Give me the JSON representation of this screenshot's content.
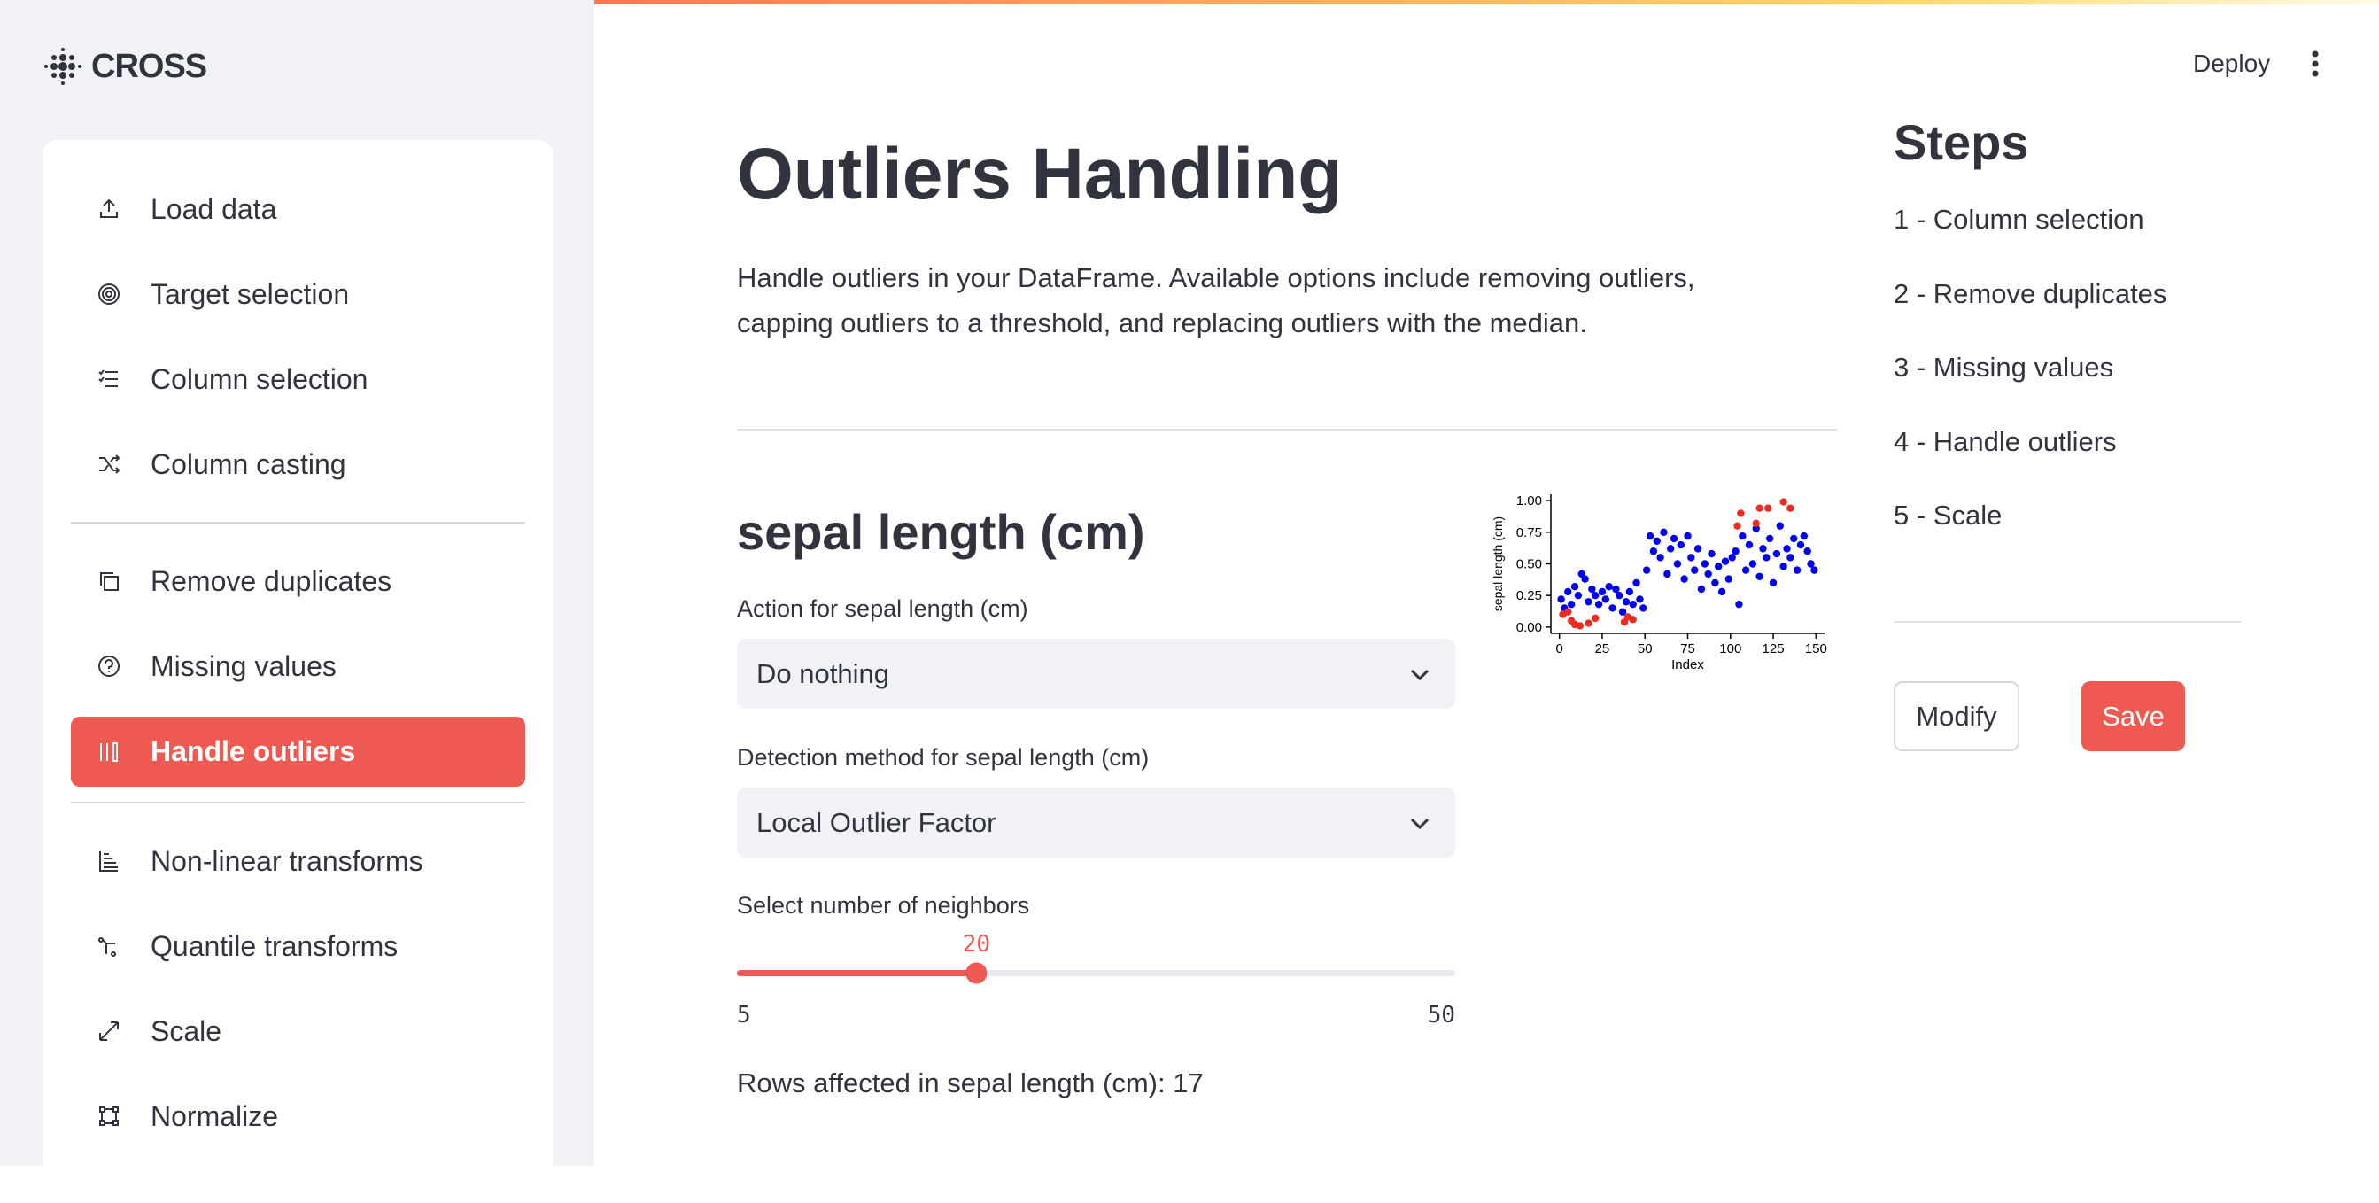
{
  "header": {
    "logo": "CROSS",
    "deploy": "Deploy"
  },
  "sidebar": {
    "nav": [
      "Load data",
      "Target selection",
      "Column selection",
      "Column casting",
      "Remove duplicates",
      "Missing values",
      "Handle outliers",
      "Non-linear transforms",
      "Quantile transforms",
      "Scale",
      "Normalize"
    ],
    "active": 6
  },
  "main": {
    "title": "Outliers Handling",
    "description": "Handle outliers in your DataFrame. Available options include removing outliers, capping outliers to a threshold, and replacing outliers with the median.",
    "section_title": "sepal length (cm)",
    "action_label": "Action for sepal length (cm)",
    "action_value": "Do nothing",
    "detection_label": "Detection method for sepal length (cm)",
    "detection_value": "Local Outlier Factor",
    "neighbors_label": "Select number of neighbors",
    "slider": {
      "value": 20,
      "min": 5,
      "max": 50
    },
    "rows_affected": "Rows affected in sepal length (cm): 17"
  },
  "chart_data": {
    "type": "scatter",
    "xlabel": "Index",
    "ylabel": "sepal length (cm)",
    "xlim": [
      -5,
      155
    ],
    "ylim": [
      -0.05,
      1.05
    ],
    "xticks": [
      0,
      25,
      50,
      75,
      100,
      125,
      150
    ],
    "yticks": [
      {
        "value": 0,
        "label": "0.00"
      },
      {
        "value": 0.25,
        "label": "0.25"
      },
      {
        "value": 0.5,
        "label": "0.50"
      },
      {
        "value": 0.75,
        "label": "0.75"
      },
      {
        "value": 1,
        "label": "1.00"
      }
    ],
    "series": [
      {
        "color": "#0000ee",
        "x": [
          1,
          3,
          5,
          7,
          9,
          11,
          13,
          15,
          17,
          19,
          21,
          23,
          25,
          27,
          29,
          31,
          33,
          35,
          37,
          39,
          41,
          43,
          45,
          47,
          49,
          51,
          53,
          55,
          57,
          59,
          61,
          63,
          65,
          67,
          69,
          71,
          73,
          75,
          77,
          79,
          81,
          83,
          85,
          87,
          89,
          91,
          93,
          95,
          97,
          99,
          101,
          103,
          105,
          107,
          109,
          111,
          113,
          115,
          117,
          119,
          121,
          123,
          125,
          127,
          129,
          131,
          133,
          135,
          137,
          139,
          141,
          143,
          145,
          147,
          149
        ],
        "values": [
          0.22,
          0.15,
          0.28,
          0.18,
          0.32,
          0.25,
          0.42,
          0.38,
          0.2,
          0.3,
          0.25,
          0.18,
          0.28,
          0.22,
          0.32,
          0.15,
          0.3,
          0.25,
          0.12,
          0.2,
          0.28,
          0.18,
          0.35,
          0.22,
          0.15,
          0.45,
          0.72,
          0.6,
          0.68,
          0.55,
          0.75,
          0.42,
          0.62,
          0.7,
          0.5,
          0.65,
          0.38,
          0.72,
          0.55,
          0.45,
          0.62,
          0.3,
          0.5,
          0.42,
          0.58,
          0.35,
          0.48,
          0.28,
          0.52,
          0.38,
          0.55,
          0.6,
          0.18,
          0.72,
          0.45,
          0.65,
          0.5,
          0.78,
          0.4,
          0.62,
          0.55,
          0.7,
          0.35,
          0.58,
          0.8,
          0.48,
          0.62,
          0.55,
          0.7,
          0.45,
          0.65,
          0.72,
          0.6,
          0.5,
          0.45
        ]
      },
      {
        "color": "#ee2b1f",
        "x": [
          2,
          5,
          7,
          9,
          12,
          17,
          21,
          38,
          40,
          43,
          104,
          106,
          115,
          117,
          122,
          131,
          135
        ],
        "values": [
          0.1,
          0.12,
          0.05,
          0.02,
          0.01,
          0.03,
          0.07,
          0.04,
          0.08,
          0.06,
          0.8,
          0.9,
          0.82,
          0.94,
          0.94,
          0.99,
          0.94
        ]
      }
    ]
  },
  "steps": {
    "title": "Steps",
    "items": [
      "1 - Column selection",
      "2 - Remove duplicates",
      "3 - Missing values",
      "4 - Handle outliers",
      "5 - Scale"
    ]
  },
  "buttons": {
    "modify": "Modify",
    "save": "Save"
  }
}
